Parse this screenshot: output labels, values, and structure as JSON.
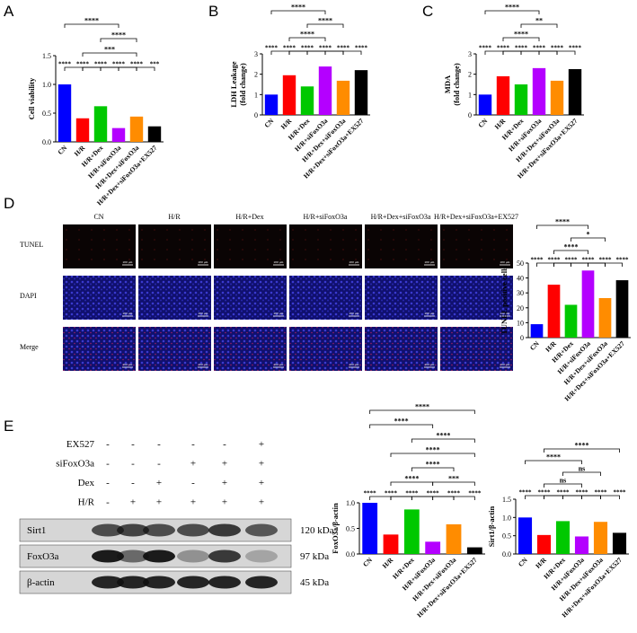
{
  "panels": [
    "A",
    "B",
    "C",
    "D",
    "E"
  ],
  "micrographs": {
    "columns": [
      "CN",
      "H/R",
      "H/R+Dex",
      "H/R+siFoxO3a",
      "H/R+Dex+siFoxO3a",
      "H/R+Dex+siFoxO3a+EX527"
    ],
    "rows": [
      "TUNEL",
      "DAPI",
      "Merge"
    ],
    "scale_bar": "200 μm"
  },
  "blot": {
    "treatments": [
      {
        "name": "EX527",
        "signs": [
          "-",
          "-",
          "-",
          "-",
          "-",
          "+"
        ]
      },
      {
        "name": "siFoxO3a",
        "signs": [
          "-",
          "-",
          "-",
          "+",
          "+",
          "+"
        ]
      },
      {
        "name": "Dex",
        "signs": [
          "-",
          "-",
          "+",
          "-",
          "+",
          "+"
        ]
      },
      {
        "name": "H/R",
        "signs": [
          "-",
          "+",
          "+",
          "+",
          "+",
          "+"
        ]
      }
    ],
    "bands": [
      {
        "name": "Sirt1",
        "size": "120 kDa"
      },
      {
        "name": "FoxO3a",
        "size": "97 kDa"
      },
      {
        "name": "β-actin",
        "size": "45 kDa"
      }
    ]
  },
  "chart_data": [
    {
      "type": "bar",
      "ylabel": [
        "Cell viability"
      ],
      "categories": [
        "CN",
        "H/R",
        "H/R+Dex",
        "H/R+siFoxO3a",
        "H/R+Dex+siFoxO3a",
        "H/R+Dex+siFoxO3a+EX527"
      ],
      "values": [
        1.0,
        0.41,
        0.62,
        0.24,
        0.44,
        0.27
      ],
      "colors": [
        "#0000ff",
        "#ff0000",
        "#00c800",
        "#b400ff",
        "#ff8c00",
        "#000000"
      ],
      "ylim": [
        0,
        1.5
      ],
      "yticks": [
        {
          "value": 0,
          "label": "0.0"
        },
        {
          "value": 0.5,
          "label": "0.5"
        },
        {
          "value": 1,
          "label": "1.0"
        },
        {
          "value": 1.5,
          "label": "1.5"
        }
      ],
      "annotations": [
        "****",
        "****",
        "****",
        "****",
        "****",
        "***",
        "***",
        "****",
        "****"
      ]
    },
    {
      "type": "bar",
      "ylabel": [
        "LDH Leakage",
        "(fold change)"
      ],
      "categories": [
        "CN",
        "H/R",
        "H/R+Dex",
        "H/R+siFoxO3a",
        "H/R+Dex+siFoxO3a",
        "H/R+Dex+siFoxO3a+EX527"
      ],
      "values": [
        1.0,
        1.95,
        1.4,
        2.38,
        1.68,
        2.2
      ],
      "colors": [
        "#0000ff",
        "#ff0000",
        "#00c800",
        "#b400ff",
        "#ff8c00",
        "#000000"
      ],
      "ylim": [
        0,
        3
      ],
      "yticks": [
        0,
        1,
        2,
        3
      ],
      "annotations": [
        "****",
        "****",
        "****",
        "****",
        "****",
        "****",
        "****",
        "****",
        "****"
      ]
    },
    {
      "type": "bar",
      "ylabel": [
        "MDA",
        "(fold change)"
      ],
      "categories": [
        "CN",
        "H/R",
        "H/R+Dex",
        "H/R+siFoxO3a",
        "H/R+Dex+siFoxO3a",
        "H/R+Dex+siFoxO3a+EX527"
      ],
      "values": [
        1.0,
        1.9,
        1.5,
        2.3,
        1.68,
        2.25
      ],
      "colors": [
        "#0000ff",
        "#ff0000",
        "#00c800",
        "#b400ff",
        "#ff8c00",
        "#000000"
      ],
      "ylim": [
        0,
        3
      ],
      "yticks": [
        0,
        1,
        2,
        3
      ],
      "annotations": [
        "****",
        "****",
        "****",
        "****",
        "****",
        "****",
        "****",
        "**",
        "****"
      ]
    },
    {
      "type": "bar",
      "ylabel": [
        "TUNEL positive cells"
      ],
      "categories": [
        "CN",
        "H/R",
        "H/R+Dex",
        "H/R+siFoxO3a",
        "H/R+Dex+siFoxO3a",
        "H/R+Dex+siFoxO3a+EX527"
      ],
      "values": [
        9,
        35.5,
        22,
        45,
        26.5,
        38.5
      ],
      "colors": [
        "#0000ff",
        "#ff0000",
        "#00c800",
        "#b400ff",
        "#ff8c00",
        "#000000"
      ],
      "ylim": [
        0,
        50
      ],
      "yticks": [
        0,
        10,
        20,
        30,
        40,
        50
      ],
      "annotations": [
        "****",
        "****",
        "****",
        "****",
        "****",
        "****",
        "****",
        "*",
        "****"
      ]
    },
    {
      "type": "bar",
      "ylabel": [
        "FoxO3a/β-actin"
      ],
      "categories": [
        "CN",
        "H/R",
        "H/R+Dex",
        "H/R+siFoxO3a",
        "H/R+Dex+siFoxO3a",
        "H/R+Dex+siFoxO3a+EX527"
      ],
      "values": [
        1.0,
        0.38,
        0.87,
        0.24,
        0.58,
        0.13
      ],
      "colors": [
        "#0000ff",
        "#ff0000",
        "#00c800",
        "#b400ff",
        "#ff8c00",
        "#000000"
      ],
      "ylim": [
        0,
        1
      ],
      "yticks": [
        {
          "value": 0,
          "label": "0.0"
        },
        {
          "value": 0.5,
          "label": "0.5"
        },
        {
          "value": 1,
          "label": "1.0"
        }
      ],
      "annotations": [
        "****",
        "****",
        "****",
        "****",
        "****",
        "****",
        "****",
        "***",
        "****",
        "****",
        "****",
        "****",
        "****"
      ]
    },
    {
      "type": "bar",
      "ylabel": [
        "Sirt1/β-actin"
      ],
      "categories": [
        "CN",
        "H/R",
        "H/R+Dex",
        "H/R+siFoxO3a",
        "H/R+Dex+siFoxO3a",
        "H/R+Dex+siFoxO3a+EX527"
      ],
      "values": [
        1.0,
        0.52,
        0.9,
        0.48,
        0.88,
        0.58
      ],
      "colors": [
        "#0000ff",
        "#ff0000",
        "#00c800",
        "#b400ff",
        "#ff8c00",
        "#000000"
      ],
      "ylim": [
        0,
        1.5
      ],
      "yticks": [
        {
          "value": 0,
          "label": "0.0"
        },
        {
          "value": 0.5,
          "label": "0.5"
        },
        {
          "value": 1,
          "label": "1.0"
        },
        {
          "value": 1.5,
          "label": "1.5"
        }
      ],
      "annotations": [
        "****",
        "****",
        "****",
        "****",
        "****",
        "****",
        "ns",
        "ns",
        "****",
        "****"
      ]
    }
  ]
}
